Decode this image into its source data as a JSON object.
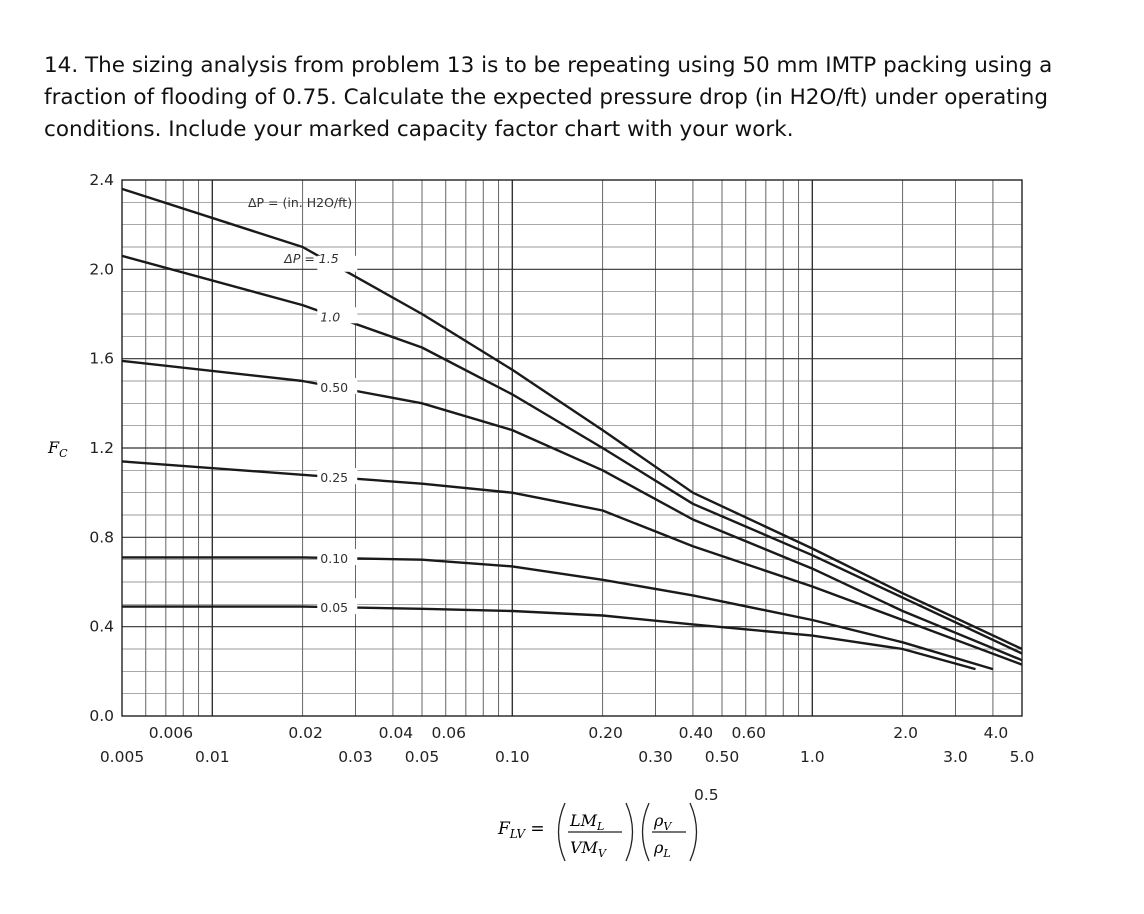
{
  "problem": {
    "text": "14. The sizing analysis from problem 13 is to be repeating using 50 mm IMTP packing using a fraction of flooding of 0.75. Calculate the expected pressure drop (in H2O/ft) under operating conditions. Include your marked capacity factor chart with your work."
  },
  "chart_data": {
    "type": "line",
    "x_scale": "log",
    "xlim": [
      0.005,
      5.0
    ],
    "ylim": [
      0.0,
      2.4
    ],
    "grid": true,
    "ylabel": "FC",
    "xlabel": "FLV = (LML/VMV)(ρV/ρL)^0.5",
    "x_ticks_upper": [
      "0.006",
      "0.02",
      "0.04",
      "0.06",
      "0.20",
      "0.40",
      "0.60",
      "2.0",
      "4.0"
    ],
    "x_ticks_lower": [
      "0.005",
      "0.01",
      "0.03",
      "0.05",
      "0.10",
      "0.30",
      "0.50",
      "1.0",
      "3.0",
      "5.0"
    ],
    "y_ticks": [
      "2.4",
      "2.0",
      "1.6",
      "1.2",
      "0.8",
      "0.4",
      "0.0"
    ],
    "legend_title": "ΔP = (in. H2O/ft)",
    "series": [
      {
        "name": "1.5",
        "x": [
          0.005,
          0.02,
          0.05,
          0.1,
          0.2,
          0.4,
          1.0,
          2.0,
          5.0
        ],
        "y": [
          2.36,
          2.1,
          1.8,
          1.55,
          1.28,
          1.0,
          0.75,
          0.55,
          0.3
        ]
      },
      {
        "name": "1.0",
        "x": [
          0.005,
          0.02,
          0.05,
          0.1,
          0.2,
          0.4,
          1.0,
          2.0,
          5.0
        ],
        "y": [
          2.06,
          1.84,
          1.65,
          1.44,
          1.2,
          0.95,
          0.72,
          0.53,
          0.28
        ]
      },
      {
        "name": "0.50",
        "x": [
          0.005,
          0.02,
          0.05,
          0.1,
          0.2,
          0.4,
          1.0,
          2.0,
          5.0
        ],
        "y": [
          1.59,
          1.5,
          1.4,
          1.28,
          1.1,
          0.88,
          0.66,
          0.47,
          0.25
        ]
      },
      {
        "name": "0.25",
        "x": [
          0.005,
          0.02,
          0.05,
          0.1,
          0.2,
          0.4,
          1.0,
          2.0,
          5.0
        ],
        "y": [
          1.14,
          1.08,
          1.04,
          1.0,
          0.92,
          0.76,
          0.58,
          0.43,
          0.23
        ]
      },
      {
        "name": "0.10",
        "x": [
          0.005,
          0.02,
          0.05,
          0.1,
          0.2,
          0.4,
          1.0,
          2.0,
          4.0
        ],
        "y": [
          0.71,
          0.71,
          0.7,
          0.67,
          0.61,
          0.54,
          0.43,
          0.33,
          0.21
        ]
      },
      {
        "name": "0.05",
        "x": [
          0.005,
          0.02,
          0.05,
          0.1,
          0.2,
          0.4,
          1.0,
          2.0,
          3.5
        ],
        "y": [
          0.49,
          0.49,
          0.48,
          0.47,
          0.45,
          0.41,
          0.36,
          0.3,
          0.21
        ]
      }
    ]
  }
}
